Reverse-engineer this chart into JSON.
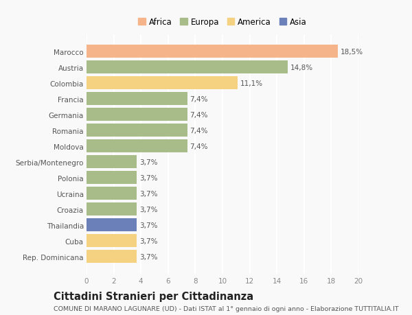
{
  "categories": [
    "Rep. Dominicana",
    "Cuba",
    "Thailandia",
    "Croazia",
    "Ucraina",
    "Polonia",
    "Serbia/Montenegro",
    "Moldova",
    "Romania",
    "Germania",
    "Francia",
    "Colombia",
    "Austria",
    "Marocco"
  ],
  "values": [
    3.7,
    3.7,
    3.7,
    3.7,
    3.7,
    3.7,
    3.7,
    7.4,
    7.4,
    7.4,
    7.4,
    11.1,
    14.8,
    18.5
  ],
  "colors": [
    "#f5d281",
    "#f5d281",
    "#6b80b8",
    "#a8bc8a",
    "#a8bc8a",
    "#a8bc8a",
    "#a8bc8a",
    "#a8bc8a",
    "#a8bc8a",
    "#a8bc8a",
    "#a8bc8a",
    "#f5d281",
    "#a8bc8a",
    "#f5b48a"
  ],
  "labels": [
    "3,7%",
    "3,7%",
    "3,7%",
    "3,7%",
    "3,7%",
    "3,7%",
    "3,7%",
    "7,4%",
    "7,4%",
    "7,4%",
    "7,4%",
    "11,1%",
    "14,8%",
    "18,5%"
  ],
  "legend": [
    {
      "label": "Africa",
      "color": "#f5b48a"
    },
    {
      "label": "Europa",
      "color": "#a8bc8a"
    },
    {
      "label": "America",
      "color": "#f5d281"
    },
    {
      "label": "Asia",
      "color": "#6b80b8"
    }
  ],
  "title": "Cittadini Stranieri per Cittadinanza",
  "subtitle": "COMUNE DI MARANO LAGUNARE (UD) - Dati ISTAT al 1° gennaio di ogni anno - Elaborazione TUTTITALIA.IT",
  "xlim": [
    0,
    20
  ],
  "xticks": [
    0,
    2,
    4,
    6,
    8,
    10,
    12,
    14,
    16,
    18,
    20
  ],
  "background_color": "#f9f9f9",
  "bar_height": 0.82,
  "label_fontsize": 7.5,
  "tick_fontsize": 7.5,
  "ytick_fontsize": 7.5,
  "title_fontsize": 10.5,
  "subtitle_fontsize": 6.8
}
